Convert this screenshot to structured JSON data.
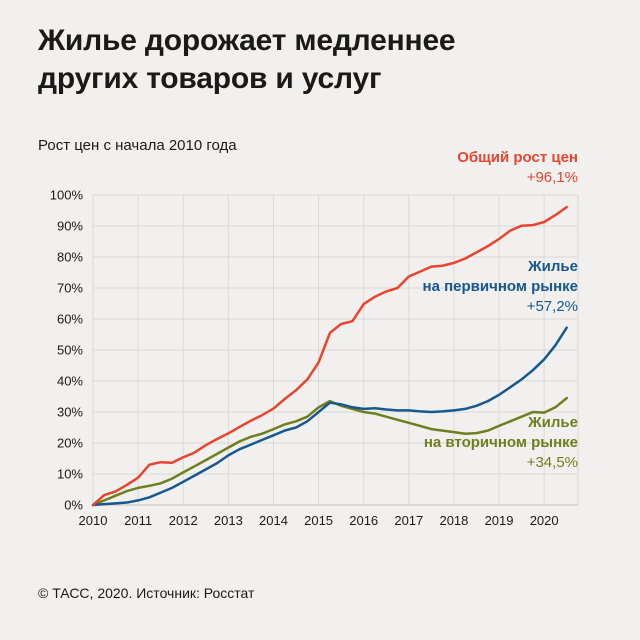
{
  "page": {
    "title_lines": [
      "Жилье дорожает медленнее",
      "других товаров и услуг"
    ],
    "subtitle": "Рост цен с начала 2010 года",
    "footer": "© ТАСС, 2020. Источник: Росстат"
  },
  "colors": {
    "background": "#f1f0ee",
    "grid": "#dbd9d5",
    "axis": "#c2c0bc",
    "text": "#1a1a1a",
    "red": "#e8442e",
    "blue": "#17588f",
    "green": "#6e7f1d"
  },
  "chart_data": {
    "type": "line",
    "title": "Рост цен с начала 2010 года",
    "xlabel": "",
    "ylabel": "",
    "xlim": [
      2010,
      2020.75
    ],
    "ylim": [
      0,
      100
    ],
    "grid": true,
    "x_ticks": [
      2010,
      2011,
      2012,
      2013,
      2014,
      2015,
      2016,
      2017,
      2018,
      2019,
      2020
    ],
    "x_tick_labels": [
      "2010",
      "2011",
      "2012",
      "2013",
      "2014",
      "2015",
      "2016",
      "2017",
      "2018",
      "2019",
      "2020"
    ],
    "y_ticks": [
      0,
      10,
      20,
      30,
      40,
      50,
      60,
      70,
      80,
      90,
      100
    ],
    "y_tick_labels": [
      "0%",
      "10%",
      "20%",
      "30%",
      "40%",
      "50%",
      "60%",
      "70%",
      "80%",
      "90%",
      "100%"
    ],
    "x": [
      2010,
      2010.25,
      2010.5,
      2010.75,
      2011,
      2011.25,
      2011.5,
      2011.75,
      2012,
      2012.25,
      2012.5,
      2012.75,
      2013,
      2013.25,
      2013.5,
      2013.75,
      2014,
      2014.25,
      2014.5,
      2014.75,
      2015,
      2015.25,
      2015.5,
      2015.75,
      2016,
      2016.25,
      2016.5,
      2016.75,
      2017,
      2017.25,
      2017.5,
      2017.75,
      2018,
      2018.25,
      2018.5,
      2018.75,
      2019,
      2019.25,
      2019.5,
      2019.75,
      2020,
      2020.25,
      2020.5
    ],
    "series": [
      {
        "name": "Общий рост цен",
        "label_lines": [
          "Общий рост цен"
        ],
        "value_label": "+96,1%",
        "final_value": 96.1,
        "color_key": "red",
        "y": [
          0,
          3.2,
          4.4,
          6.5,
          8.8,
          13.0,
          13.8,
          13.6,
          15.4,
          16.9,
          19.3,
          21.3,
          23.1,
          25.2,
          27.2,
          29.0,
          31.1,
          34.2,
          37.0,
          40.5,
          46.0,
          55.5,
          58.4,
          59.3,
          64.8,
          67.2,
          68.9,
          70.0,
          73.7,
          75.3,
          76.9,
          77.2,
          78.1,
          79.5,
          81.5,
          83.5,
          85.8,
          88.5,
          90.1,
          90.3,
          91.3,
          93.5,
          96.1
        ]
      },
      {
        "name": "Жилье на первичном рынке",
        "label_lines": [
          "Жилье",
          "на первичном рынке"
        ],
        "value_label": "+57,2%",
        "final_value": 57.2,
        "color_key": "blue",
        "y": [
          0,
          0.3,
          0.5,
          0.8,
          1.5,
          2.5,
          4.0,
          5.5,
          7.5,
          9.5,
          11.5,
          13.5,
          16.0,
          18.0,
          19.5,
          21.0,
          22.5,
          24.0,
          25.0,
          27.0,
          30.0,
          33.0,
          32.5,
          31.5,
          31.0,
          31.2,
          30.8,
          30.5,
          30.5,
          30.2,
          30.0,
          30.2,
          30.5,
          31.0,
          32.0,
          33.5,
          35.5,
          38.0,
          40.5,
          43.5,
          47.0,
          51.5,
          57.2
        ]
      },
      {
        "name": "Жилье на вторичном рынке",
        "label_lines": [
          "Жилье",
          "на вторичном рынке"
        ],
        "value_label": "+34,5%",
        "final_value": 34.5,
        "color_key": "green",
        "y": [
          0,
          1.5,
          3.0,
          4.5,
          5.5,
          6.2,
          7.0,
          8.5,
          10.5,
          12.5,
          14.5,
          16.5,
          18.5,
          20.5,
          22.0,
          23.0,
          24.5,
          26.0,
          27.0,
          28.5,
          31.5,
          33.5,
          32.0,
          31.0,
          30.0,
          29.5,
          28.5,
          27.5,
          26.5,
          25.5,
          24.5,
          24.0,
          23.5,
          23.0,
          23.2,
          24.0,
          25.5,
          27.0,
          28.5,
          30.0,
          29.8,
          31.5,
          34.5
        ]
      }
    ],
    "legend_position": "annotations-right"
  }
}
